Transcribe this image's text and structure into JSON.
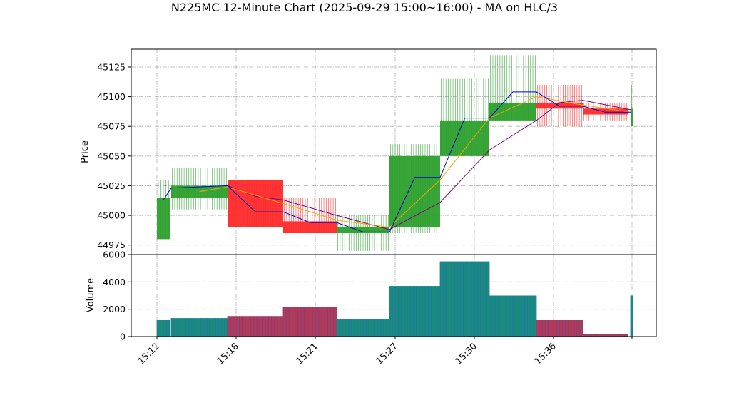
{
  "chart_data": {
    "type": "candlestick",
    "title": "N225MC 12-Minute Chart (2025-09-29 15:00~16:00) - MA on HLC/3",
    "ylabel_price": "Price",
    "ylabel_volume": "Volume",
    "x_tick_labels": [
      "15:12",
      "15:18",
      "15:21",
      "15:27",
      "15:30",
      "15:36",
      ""
    ],
    "price_ylim": [
      44967,
      45140
    ],
    "price_ticks": [
      "44975",
      "45000",
      "45025",
      "45050",
      "45075",
      "45100",
      "45125"
    ],
    "volume_ylim": [
      0,
      6000
    ],
    "volume_ticks": [
      "0",
      "2000",
      "4000",
      "6000"
    ],
    "grid": true,
    "colors": {
      "up": "#2ca02c",
      "down": "#ff2a2a",
      "ma_short": "#0000cc",
      "ma_mid": "#ffa500",
      "ma_long": "#800080",
      "volume_edge_up": "#1f77b4",
      "volume_edge_down": "#7f3f7f"
    },
    "candles": [
      {
        "open": 44980,
        "high": 45030,
        "low": 44980,
        "close": 45015,
        "volume": 1200
      },
      {
        "open": 45015,
        "high": 45040,
        "low": 45005,
        "close": 45025,
        "volume": 1350
      },
      {
        "open": 45030,
        "high": 45030,
        "low": 44990,
        "close": 44990,
        "volume": 1500
      },
      {
        "open": 44995,
        "high": 45015,
        "low": 44985,
        "close": 44985,
        "volume": 2150
      },
      {
        "open": 44985,
        "high": 45000,
        "low": 44970,
        "close": 44990,
        "volume": 1250
      },
      {
        "open": 44990,
        "high": 45060,
        "low": 44985,
        "close": 45050,
        "volume": 3700
      },
      {
        "open": 45050,
        "high": 45115,
        "low": 45050,
        "close": 45080,
        "volume": 5500
      },
      {
        "open": 45080,
        "high": 45135,
        "low": 45080,
        "close": 45095,
        "volume": 3000
      },
      {
        "open": 45095,
        "high": 45110,
        "low": 45075,
        "close": 45090,
        "volume": 1200
      },
      {
        "open": 45090,
        "high": 45095,
        "low": 45080,
        "close": 45085,
        "volume": 200
      },
      {
        "open": 45075,
        "high": 45110,
        "low": 45075,
        "close": 45090,
        "volume": 3000
      }
    ],
    "ma_short": [
      {
        "candle": 0.5,
        "value": 45013
      },
      {
        "candle": 1.0,
        "value": 45023
      },
      {
        "candle": 2.0,
        "value": 45025
      },
      {
        "candle": 2.5,
        "value": 45003
      },
      {
        "candle": 3.0,
        "value": 45003
      },
      {
        "candle": 3.5,
        "value": 44994
      },
      {
        "candle": 4.0,
        "value": 44994
      },
      {
        "candle": 4.5,
        "value": 44986
      },
      {
        "candle": 5.0,
        "value": 44986
      },
      {
        "candle": 5.5,
        "value": 45032
      },
      {
        "candle": 6.0,
        "value": 45032
      },
      {
        "candle": 6.5,
        "value": 45082
      },
      {
        "candle": 7.0,
        "value": 45082
      },
      {
        "candle": 7.5,
        "value": 45104
      },
      {
        "candle": 8.0,
        "value": 45104
      },
      {
        "candle": 8.5,
        "value": 45092
      },
      {
        "candle": 9.0,
        "value": 45092
      },
      {
        "candle": 9.5,
        "value": 45087
      },
      {
        "candle": 10.0,
        "value": 45087
      }
    ],
    "ma_mid": [
      {
        "candle": 1.5,
        "value": 45020
      },
      {
        "candle": 2.0,
        "value": 45024
      },
      {
        "candle": 3.0,
        "value": 45010
      },
      {
        "candle": 4.0,
        "value": 44996
      },
      {
        "candle": 5.0,
        "value": 44990
      },
      {
        "candle": 6.0,
        "value": 45030
      },
      {
        "candle": 7.0,
        "value": 45082
      },
      {
        "candle": 8.0,
        "value": 45100
      },
      {
        "candle": 9.0,
        "value": 45093
      },
      {
        "candle": 10.0,
        "value": 45087
      }
    ],
    "ma_long": [
      {
        "candle": 2.0,
        "value": 45025
      },
      {
        "candle": 2.5,
        "value": 45016
      },
      {
        "candle": 3.0,
        "value": 45013
      },
      {
        "candle": 4.0,
        "value": 45000
      },
      {
        "candle": 5.0,
        "value": 44988
      },
      {
        "candle": 6.0,
        "value": 45011
      },
      {
        "candle": 7.0,
        "value": 45055
      },
      {
        "candle": 8.0,
        "value": 45080
      },
      {
        "candle": 8.5,
        "value": 45095
      },
      {
        "candle": 9.0,
        "value": 45097
      },
      {
        "candle": 10.0,
        "value": 45089
      }
    ]
  }
}
